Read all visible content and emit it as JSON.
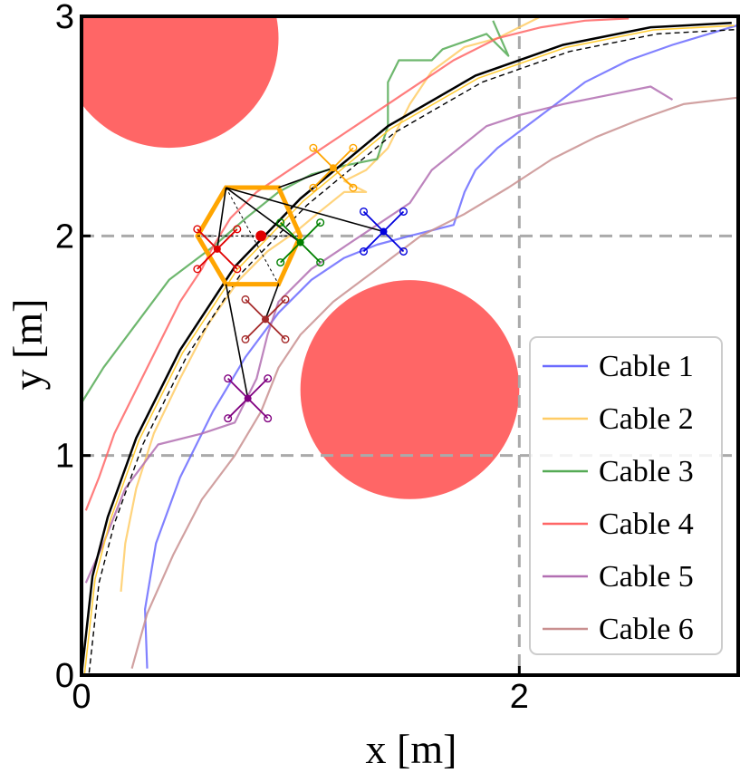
{
  "chart_data": {
    "type": "line",
    "xlabel": "x [m]",
    "ylabel": "y [m]",
    "xlim": [
      0,
      3
    ],
    "ylim": [
      0,
      3
    ],
    "xticks": [
      {
        "value": 0,
        "label": "0"
      },
      {
        "value": 2,
        "label": "2"
      }
    ],
    "yticks": [
      {
        "value": 0,
        "label": "0"
      },
      {
        "value": 1,
        "label": "1"
      },
      {
        "value": 2,
        "label": "2"
      },
      {
        "value": 3,
        "label": "3"
      }
    ],
    "grid_lines": {
      "x": [
        2
      ],
      "y": [
        1,
        2
      ]
    },
    "legend_position": "bottom-right",
    "obstacles": [
      {
        "name": "obstacle-top-left",
        "cx": 0.4,
        "cy": 2.9,
        "r": 0.5,
        "color": "#ff6666"
      },
      {
        "name": "obstacle-center",
        "cx": 1.5,
        "cy": 1.3,
        "r": 0.5,
        "color": "#ff6666"
      }
    ],
    "reference_path": {
      "name": "Reference",
      "points": [
        [
          0.0,
          0.0
        ],
        [
          0.05,
          0.45
        ],
        [
          0.12,
          0.72
        ],
        [
          0.25,
          1.08
        ],
        [
          0.45,
          1.48
        ],
        [
          0.7,
          1.86
        ],
        [
          1.0,
          2.17
        ],
        [
          1.4,
          2.5
        ],
        [
          1.8,
          2.73
        ],
        [
          2.2,
          2.87
        ],
        [
          2.6,
          2.95
        ],
        [
          2.97,
          2.97
        ]
      ]
    },
    "series": [
      {
        "name": "Cable 1",
        "color": "#6b6bff",
        "points": [
          [
            0.3,
            0.03
          ],
          [
            0.29,
            0.3
          ],
          [
            0.34,
            0.6
          ],
          [
            0.45,
            0.9
          ],
          [
            0.6,
            1.2
          ],
          [
            0.75,
            1.45
          ],
          [
            0.9,
            1.65
          ],
          [
            1.05,
            1.8
          ],
          [
            1.2,
            1.9
          ],
          [
            1.35,
            1.96
          ],
          [
            1.5,
            2.0
          ],
          [
            1.7,
            2.05
          ],
          [
            1.75,
            2.2
          ],
          [
            1.8,
            2.3
          ],
          [
            1.9,
            2.4
          ],
          [
            2.1,
            2.55
          ],
          [
            2.3,
            2.7
          ],
          [
            2.5,
            2.8
          ],
          [
            2.7,
            2.87
          ],
          [
            3.0,
            2.96
          ]
        ]
      },
      {
        "name": "Cable 2",
        "color": "#ffcc66",
        "points": [
          [
            0.18,
            0.38
          ],
          [
            0.2,
            0.6
          ],
          [
            0.25,
            0.85
          ],
          [
            0.33,
            1.1
          ],
          [
            0.45,
            1.35
          ],
          [
            0.58,
            1.6
          ],
          [
            0.72,
            1.8
          ],
          [
            0.85,
            1.93
          ],
          [
            0.98,
            2.02
          ],
          [
            1.1,
            2.12
          ],
          [
            1.2,
            2.2
          ],
          [
            1.3,
            2.2
          ],
          [
            1.2,
            2.25
          ],
          [
            1.3,
            2.3
          ],
          [
            1.4,
            2.4
          ],
          [
            1.5,
            2.6
          ],
          [
            1.6,
            2.75
          ],
          [
            1.75,
            2.86
          ],
          [
            1.9,
            2.9
          ],
          [
            2.0,
            2.95
          ],
          [
            2.1,
            3.0
          ]
        ]
      },
      {
        "name": "Cable 3",
        "color": "#55aa55",
        "points": [
          [
            0.0,
            1.24
          ],
          [
            0.1,
            1.4
          ],
          [
            0.25,
            1.6
          ],
          [
            0.4,
            1.8
          ],
          [
            0.6,
            1.95
          ],
          [
            0.75,
            2.08
          ],
          [
            0.9,
            2.2
          ],
          [
            1.05,
            2.28
          ],
          [
            1.2,
            2.32
          ],
          [
            1.35,
            2.35
          ],
          [
            1.4,
            2.5
          ],
          [
            1.4,
            2.7
          ],
          [
            1.45,
            2.8
          ],
          [
            1.6,
            2.8
          ],
          [
            1.65,
            2.85
          ],
          [
            1.85,
            2.92
          ],
          [
            1.95,
            2.82
          ],
          [
            1.88,
            2.98
          ]
        ]
      },
      {
        "name": "Cable 4",
        "color": "#ff6666",
        "points": [
          [
            0.02,
            0.75
          ],
          [
            0.08,
            0.9
          ],
          [
            0.15,
            1.1
          ],
          [
            0.25,
            1.3
          ],
          [
            0.35,
            1.5
          ],
          [
            0.45,
            1.7
          ],
          [
            0.55,
            1.85
          ],
          [
            0.6,
            1.95
          ],
          [
            0.68,
            2.08
          ],
          [
            0.8,
            2.2
          ],
          [
            0.95,
            2.3
          ],
          [
            1.1,
            2.4
          ],
          [
            1.25,
            2.5
          ],
          [
            1.4,
            2.6
          ],
          [
            1.55,
            2.7
          ],
          [
            1.7,
            2.8
          ],
          [
            1.9,
            2.9
          ],
          [
            2.1,
            2.95
          ],
          [
            2.3,
            2.98
          ],
          [
            2.5,
            2.99
          ]
        ]
      },
      {
        "name": "Cable 5",
        "color": "#b26fb2",
        "points": [
          [
            0.02,
            0.42
          ],
          [
            0.1,
            0.6
          ],
          [
            0.2,
            0.85
          ],
          [
            0.35,
            1.05
          ],
          [
            0.55,
            1.1
          ],
          [
            0.7,
            1.15
          ],
          [
            0.8,
            1.35
          ],
          [
            0.85,
            1.55
          ],
          [
            0.9,
            1.7
          ],
          [
            1.05,
            1.85
          ],
          [
            1.2,
            1.95
          ],
          [
            1.35,
            2.05
          ],
          [
            1.5,
            2.15
          ],
          [
            1.6,
            2.3
          ],
          [
            1.75,
            2.42
          ],
          [
            1.85,
            2.5
          ],
          [
            2.0,
            2.55
          ],
          [
            2.2,
            2.6
          ],
          [
            2.45,
            2.65
          ],
          [
            2.6,
            2.68
          ],
          [
            2.7,
            2.62
          ]
        ]
      },
      {
        "name": "Cable 6",
        "color": "#c99090",
        "points": [
          [
            0.23,
            0.03
          ],
          [
            0.3,
            0.28
          ],
          [
            0.42,
            0.55
          ],
          [
            0.55,
            0.8
          ],
          [
            0.7,
            1.0
          ],
          [
            0.82,
            1.2
          ],
          [
            0.9,
            1.4
          ],
          [
            1.0,
            1.55
          ],
          [
            1.15,
            1.7
          ],
          [
            1.35,
            1.85
          ],
          [
            1.55,
            2.0
          ],
          [
            1.75,
            2.1
          ],
          [
            1.95,
            2.22
          ],
          [
            2.15,
            2.35
          ],
          [
            2.35,
            2.45
          ],
          [
            2.55,
            2.53
          ],
          [
            2.75,
            2.6
          ],
          [
            3.0,
            2.63
          ]
        ]
      }
    ],
    "payload": {
      "name": "payload-hexagon",
      "color": "#ffa500",
      "center": [
        0.82,
        2.0
      ],
      "vertices": [
        [
          0.66,
          2.22
        ],
        [
          0.9,
          2.22
        ],
        [
          1.0,
          2.0
        ],
        [
          0.9,
          1.78
        ],
        [
          0.66,
          1.78
        ],
        [
          0.53,
          2.0
        ]
      ]
    },
    "drones": [
      {
        "name": "drone-red",
        "color": "#e00000",
        "position": [
          0.62,
          1.94
        ],
        "attach": [
          0.66,
          2.22
        ]
      },
      {
        "name": "drone-orange",
        "color": "#ffa500",
        "position": [
          1.15,
          2.31
        ],
        "attach": [
          0.9,
          2.22
        ]
      },
      {
        "name": "drone-green",
        "color": "#008000",
        "position": [
          1.0,
          1.97
        ],
        "attach": [
          0.66,
          2.22
        ]
      },
      {
        "name": "drone-blue",
        "color": "#0000dd",
        "position": [
          1.38,
          2.02
        ],
        "attach": [
          0.66,
          2.22
        ]
      },
      {
        "name": "drone-brown",
        "color": "#a52a2a",
        "position": [
          0.84,
          1.62
        ],
        "attach": [
          0.9,
          1.78
        ]
      },
      {
        "name": "drone-purple",
        "color": "#800080",
        "position": [
          0.76,
          1.26
        ],
        "attach": [
          0.66,
          1.78
        ]
      }
    ],
    "legend_entries": [
      "Cable 1",
      "Cable 2",
      "Cable 3",
      "Cable 4",
      "Cable 5",
      "Cable 6"
    ]
  }
}
